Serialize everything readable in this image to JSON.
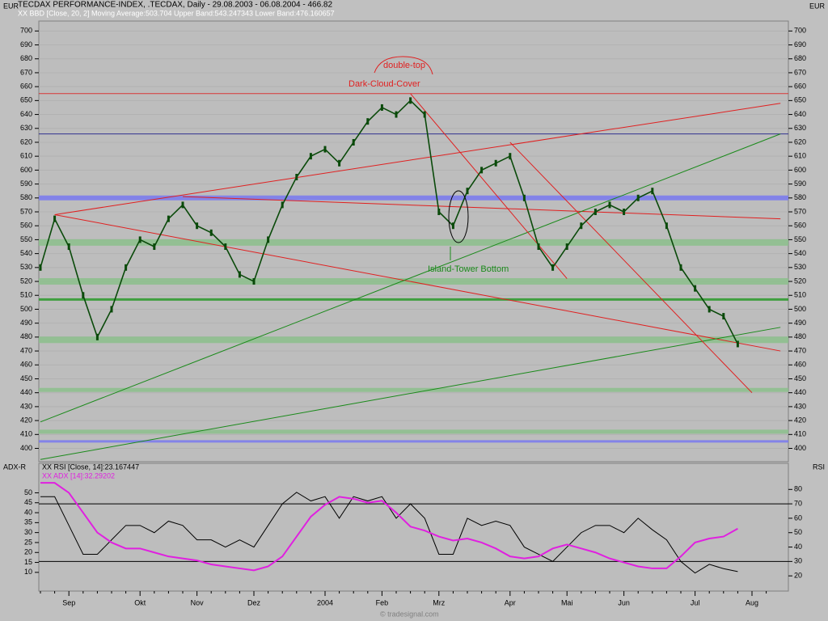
{
  "chart_data": [
    {
      "type": "line",
      "title": "TECDAX PERFORMANCE-INDEX, .TECDAX, Daily - 29.08.2003 - 06.08.2004 - 466.82",
      "subtitle": "XX BBD [Close, 20, 2] Moving Average:503.704 Upper Band:543.247343 Lower Band:476.160657",
      "y_label": "EUR",
      "y2_label": "EUR",
      "annotations": [
        "double-top",
        "Dark-Cloud-Cover",
        "Island-Tower Bottom"
      ],
      "color": "#0a4a0a",
      "values": [
        530,
        565,
        545,
        510,
        480,
        500,
        530,
        550,
        545,
        565,
        575,
        560,
        555,
        545,
        525,
        520,
        550,
        575,
        595,
        610,
        615,
        605,
        620,
        635,
        645,
        640,
        650,
        640,
        570,
        560,
        585,
        600,
        605,
        610,
        580,
        545,
        530,
        545,
        560,
        570,
        575,
        570,
        580,
        585,
        560,
        530,
        515,
        500,
        495,
        475,
        null,
        null
      ],
      "ylim": [
        391,
        706
      ],
      "yticks": [
        400,
        410,
        420,
        430,
        440,
        450,
        460,
        470,
        480,
        490,
        500,
        510,
        520,
        530,
        540,
        550,
        560,
        570,
        580,
        590,
        600,
        610,
        620,
        630,
        640,
        650,
        660,
        670,
        680,
        690,
        700
      ],
      "grid": true,
      "hlines": [
        {
          "value": 655,
          "color": "#e02020",
          "width": 1
        },
        {
          "value": 626,
          "color": "#1a1a8a",
          "width": 1
        },
        {
          "value": 580,
          "color": "#7a7af0",
          "width": 6
        },
        {
          "value": 548,
          "color": "#8cc08c",
          "width": 8
        },
        {
          "value": 520,
          "color": "#8cc08c",
          "width": 8
        },
        {
          "value": 507,
          "color": "#2a9a2a",
          "width": 3
        },
        {
          "value": 478,
          "color": "#8cc08c",
          "width": 8
        },
        {
          "value": 442,
          "color": "#8cc08c",
          "width": 5
        },
        {
          "value": 412,
          "color": "#8cc08c",
          "width": 5
        },
        {
          "value": 405,
          "color": "#7a7af0",
          "width": 3
        }
      ],
      "trendlines": [
        {
          "color": "#e02020",
          "points": [
            [
              1,
              568
            ],
            [
              52,
              470
            ]
          ]
        },
        {
          "color": "#e02020",
          "points": [
            [
              1,
              568
            ],
            [
              52,
              648
            ]
          ]
        },
        {
          "color": "#e02020",
          "points": [
            [
              10,
              581
            ],
            [
              52,
              565
            ]
          ]
        },
        {
          "color": "#1a8a1a",
          "points": [
            [
              0,
              392
            ],
            [
              52,
              487
            ]
          ]
        },
        {
          "color": "#1a8a1a",
          "points": [
            [
              0,
              419
            ],
            [
              52,
              626
            ]
          ]
        },
        {
          "color": "#e02020",
          "points": [
            [
              26,
              655
            ],
            [
              37,
              522
            ]
          ]
        },
        {
          "color": "#e02020",
          "points": [
            [
              33,
              620
            ],
            [
              50,
              440
            ]
          ]
        }
      ]
    },
    {
      "type": "line",
      "y_label": "ADX-R",
      "y2_label": "RSI",
      "footer": "© tradesignal.com",
      "categories": [
        null,
        null,
        "Sep",
        null,
        null,
        null,
        null,
        "Okt",
        null,
        null,
        null,
        "Nov",
        null,
        null,
        null,
        "Dez",
        null,
        null,
        null,
        null,
        "2004",
        null,
        null,
        null,
        "Feb",
        null,
        null,
        null,
        "Mrz",
        null,
        null,
        null,
        null,
        "Apr",
        null,
        null,
        null,
        "Mai",
        null,
        null,
        null,
        "Jun",
        null,
        null,
        null,
        null,
        "Jul",
        null,
        null,
        null,
        "Aug",
        null
      ],
      "series": [
        {
          "name": "XX RSI [Close, 14]:23.167447",
          "color": "#000000",
          "axis": "y2",
          "values": [
            75,
            75,
            55,
            35,
            35,
            45,
            55,
            55,
            50,
            58,
            55,
            45,
            45,
            40,
            45,
            40,
            55,
            70,
            78,
            72,
            75,
            60,
            75,
            72,
            75,
            60,
            70,
            60,
            35,
            35,
            60,
            55,
            58,
            55,
            40,
            35,
            30,
            40,
            50,
            55,
            55,
            50,
            60,
            52,
            45,
            30,
            22,
            28,
            25,
            23,
            null,
            null
          ]
        },
        {
          "name": "XX ADX [14]:32.29202",
          "color": "#e020e0",
          "axis": "y",
          "values": [
            55,
            55,
            50,
            40,
            30,
            25,
            22,
            22,
            20,
            18,
            17,
            16,
            14,
            13,
            12,
            11,
            13,
            18,
            28,
            38,
            44,
            48,
            47,
            45,
            46,
            40,
            33,
            31,
            28,
            26,
            27,
            25,
            22,
            18,
            17,
            18,
            22,
            24,
            22,
            20,
            17,
            15,
            13,
            12,
            12,
            18,
            25,
            27,
            28,
            32,
            null,
            null
          ]
        }
      ],
      "ylim": [
        1,
        64
      ],
      "yticks": [
        10,
        15,
        20,
        25,
        30,
        35,
        40,
        45,
        50
      ],
      "y2lim": [
        10,
        97
      ],
      "y2ticks": [
        20,
        30,
        40,
        50,
        60,
        70,
        80
      ],
      "hlines": [
        {
          "value": 70,
          "axis": "y2",
          "color": "#000000",
          "width": 1
        },
        {
          "value": 30,
          "axis": "y2",
          "color": "#000000",
          "width": 1
        }
      ]
    }
  ]
}
